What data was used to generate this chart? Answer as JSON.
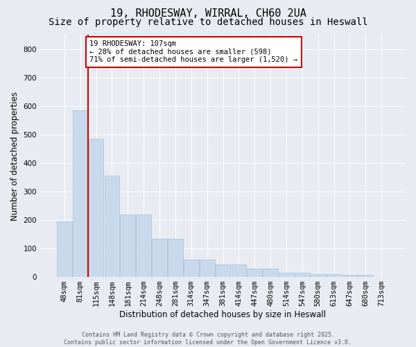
{
  "title1": "19, RHODESWAY, WIRRAL, CH60 2UA",
  "title2": "Size of property relative to detached houses in Heswall",
  "xlabel": "Distribution of detached houses by size in Heswall",
  "ylabel": "Number of detached properties",
  "categories": [
    "48sqm",
    "81sqm",
    "115sqm",
    "148sqm",
    "181sqm",
    "214sqm",
    "248sqm",
    "281sqm",
    "314sqm",
    "347sqm",
    "381sqm",
    "414sqm",
    "447sqm",
    "480sqm",
    "514sqm",
    "547sqm",
    "580sqm",
    "613sqm",
    "647sqm",
    "680sqm",
    "713sqm"
  ],
  "values": [
    195,
    585,
    485,
    355,
    220,
    220,
    135,
    135,
    60,
    60,
    45,
    45,
    30,
    30,
    15,
    15,
    10,
    10,
    8,
    8,
    0
  ],
  "bar_color": "#c9d9ec",
  "bar_edge_color": "#a8bfd4",
  "highlight_line_color": "#cc0000",
  "annotation_text": "19 RHODESWAY: 107sqm\n← 28% of detached houses are smaller (598)\n71% of semi-detached houses are larger (1,520) →",
  "annotation_box_edgecolor": "#cc0000",
  "ylim": [
    0,
    850
  ],
  "yticks": [
    0,
    100,
    200,
    300,
    400,
    500,
    600,
    700,
    800
  ],
  "fig_bg_color": "#e8ecf2",
  "plot_bg_color": "#e8ecf2",
  "footer_text": "Contains HM Land Registry data © Crown copyright and database right 2025.\nContains public sector information licensed under the Open Government Licence v3.0.",
  "title_fontsize": 11,
  "subtitle_fontsize": 10,
  "axis_label_fontsize": 8.5,
  "tick_fontsize": 7.5,
  "footer_fontsize": 6
}
